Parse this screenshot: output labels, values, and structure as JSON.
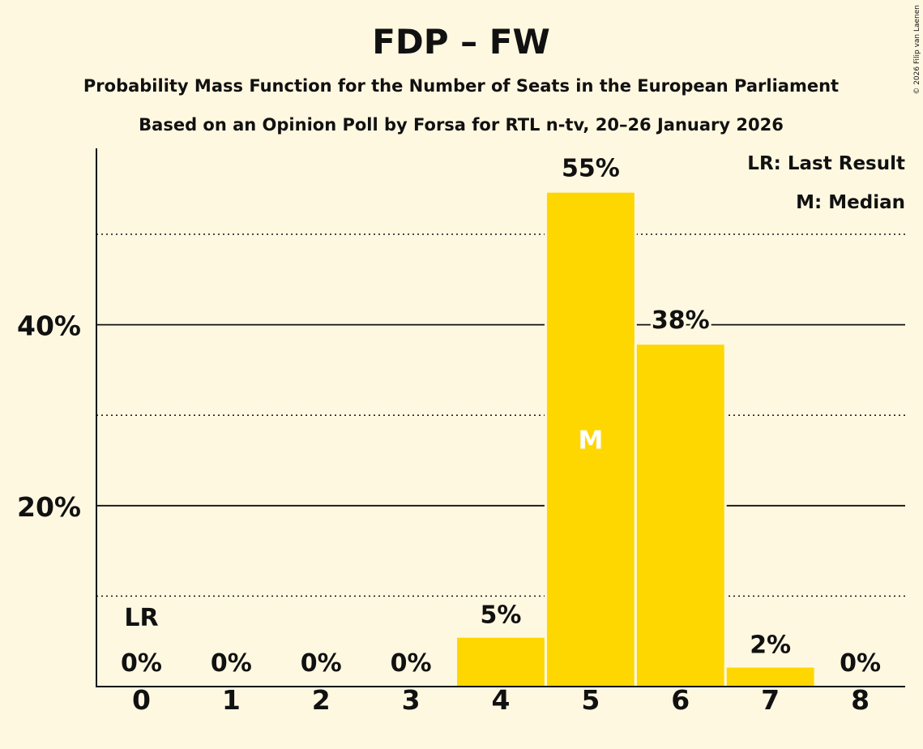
{
  "chart_data": {
    "type": "bar",
    "title": "FDP – FW",
    "subtitle": "Probability Mass Function for the Number of Seats in the European Parliament",
    "subtitle2": "Based on an Opinion Poll by Forsa for RTL n-tv, 20–26 January 2026",
    "copyright": "© 2026 Filip van Laenen",
    "categories": [
      "0",
      "1",
      "2",
      "3",
      "4",
      "5",
      "6",
      "7",
      "8"
    ],
    "values": [
      0,
      0,
      0,
      0,
      5.4,
      54.6,
      37.8,
      2.1,
      0
    ],
    "labels": [
      "0%",
      "0%",
      "0%",
      "0%",
      "5%",
      "55%",
      "38%",
      "2%",
      "0%"
    ],
    "ylim": [
      0,
      59.5
    ],
    "yticks": [
      {
        "value": 20,
        "label": "20%"
      },
      {
        "value": 40,
        "label": "40%"
      }
    ],
    "minor_gridlines": [
      10,
      30,
      50
    ],
    "last_result_index": 0,
    "last_result_label": "LR",
    "median_index": 5,
    "median_label": "M",
    "legend": {
      "lr": "LR: Last Result",
      "median": "M: Median",
      "position": "top-right"
    },
    "bar_color": "#FFD700"
  }
}
